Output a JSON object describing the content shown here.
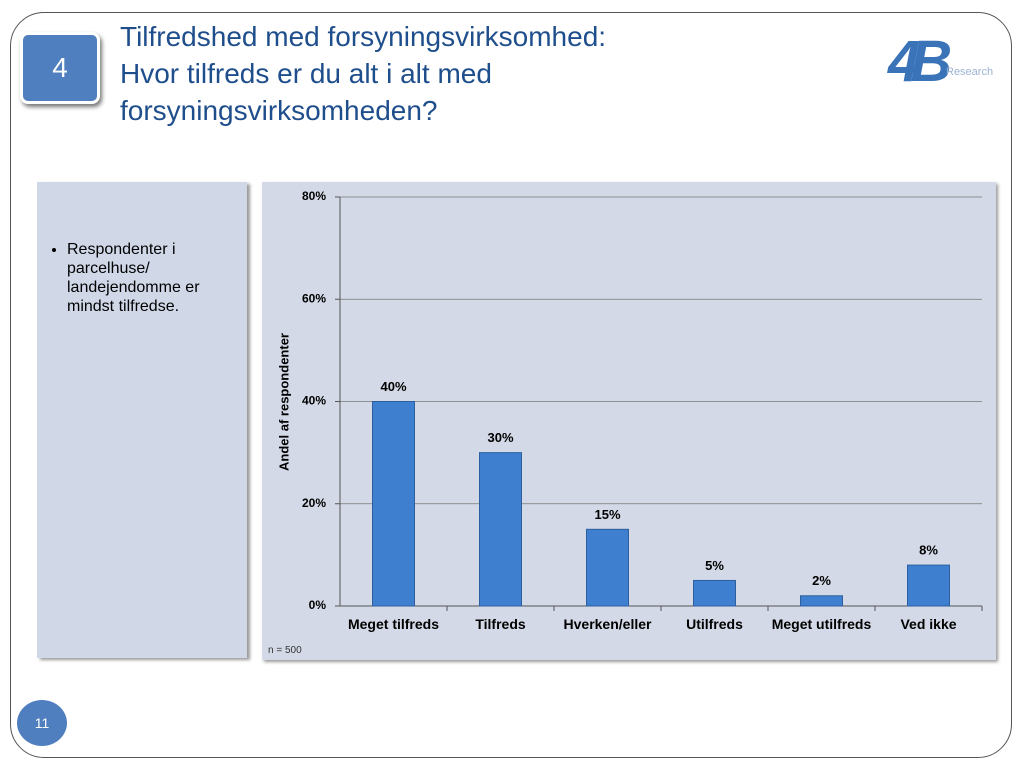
{
  "slide_badge": "4",
  "page_number": "11",
  "logo": {
    "mark": "4B",
    "text": "Research"
  },
  "bullets": [
    "Respondenter i parcelhuse/ landejendomme er mindst tilfredse."
  ],
  "chart_data": {
    "type": "bar",
    "title": "Tilfredshed med forsyningsvirksomhed:",
    "subtitle": "Hvor tilfreds er du alt i alt med forsyningsvirksomheden?",
    "y_label": "Andel af respondenter",
    "note": "n = 500",
    "categories": [
      "Meget tilfreds",
      "Tilfreds",
      "Hverken/eller",
      "Utilfreds",
      "Meget utilfreds",
      "Ved ikke"
    ],
    "values": [
      40,
      30,
      15,
      5,
      2,
      8
    ],
    "value_labels": [
      "40%",
      "30%",
      "15%",
      "5%",
      "2%",
      "8%"
    ],
    "color": "#3f7fd0",
    "ylim": [
      0,
      80
    ],
    "yticks": [
      {
        "value": 0,
        "label": "0%"
      },
      {
        "value": 20,
        "label": "20%"
      },
      {
        "value": 40,
        "label": "40%"
      },
      {
        "value": 60,
        "label": "60%"
      },
      {
        "value": 80,
        "label": "80%"
      }
    ],
    "grid": true
  }
}
